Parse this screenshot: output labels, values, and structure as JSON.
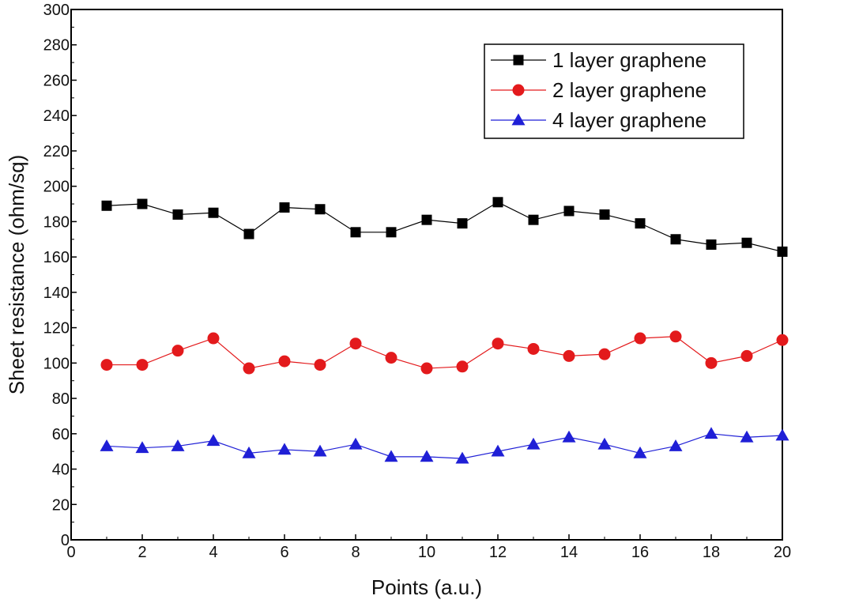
{
  "chart_data": {
    "type": "line",
    "xlabel": "Points (a.u.)",
    "ylabel": "Sheet resistance (ohm/sq)",
    "xlim": [
      0,
      20
    ],
    "ylim": [
      0,
      300
    ],
    "x_ticks": [
      0,
      2,
      4,
      6,
      8,
      10,
      12,
      14,
      16,
      18,
      20
    ],
    "y_ticks": [
      0,
      20,
      40,
      60,
      80,
      100,
      120,
      140,
      160,
      180,
      200,
      220,
      240,
      260,
      280,
      300
    ],
    "grid": false,
    "legend_position": "top-right",
    "x": [
      1,
      2,
      3,
      4,
      5,
      6,
      7,
      8,
      9,
      10,
      11,
      12,
      13,
      14,
      15,
      16,
      17,
      18,
      19,
      20
    ],
    "series": [
      {
        "name": "1 layer graphene",
        "color": "#000000",
        "marker": "square",
        "values": [
          189,
          190,
          184,
          185,
          173,
          188,
          187,
          174,
          174,
          181,
          179,
          191,
          181,
          186,
          184,
          179,
          170,
          167,
          168,
          163
        ]
      },
      {
        "name": "2 layer graphene",
        "color": "#e31a1c",
        "marker": "circle",
        "values": [
          99,
          99,
          107,
          114,
          97,
          101,
          99,
          111,
          103,
          97,
          98,
          111,
          108,
          104,
          105,
          114,
          115,
          100,
          104,
          113
        ]
      },
      {
        "name": "4 layer graphene",
        "color": "#1f1fd6",
        "marker": "triangle",
        "values": [
          53,
          52,
          53,
          56,
          49,
          51,
          50,
          54,
          47,
          47,
          46,
          50,
          54,
          58,
          54,
          49,
          53,
          60,
          58,
          59
        ]
      }
    ]
  }
}
